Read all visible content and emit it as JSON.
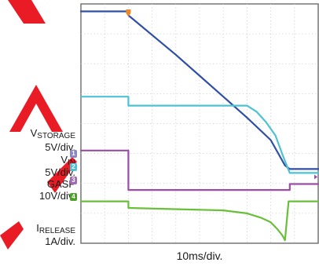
{
  "chart_data": {
    "type": "line",
    "title": "",
    "xlabel": "10ms/div.",
    "x_unit": "ms",
    "xlim": [
      0,
      100
    ],
    "grid": true,
    "grid_divisions": {
      "x": 10,
      "y": 8
    },
    "trigger_marker_color": "#e8892a",
    "series": [
      {
        "name_main": "V",
        "name_sub": "STORAGE",
        "scale": "5V/div.",
        "channel": "1",
        "color": "#2f4fa6",
        "marker_color": "#8a86c4",
        "points": [
          [
            0,
            7.75
          ],
          [
            20,
            7.75
          ],
          [
            20,
            7.62
          ],
          [
            40,
            6.3
          ],
          [
            60,
            4.9
          ],
          [
            70,
            4.2
          ],
          [
            80,
            3.45
          ],
          [
            86,
            2.6
          ],
          [
            88,
            2.48
          ],
          [
            100,
            2.48
          ]
        ]
      },
      {
        "name_main": "V",
        "name_sub": "IN",
        "scale": "5V/div.",
        "channel": "2",
        "color": "#4fc2d2",
        "marker_color": "#4fc2d2",
        "points": [
          [
            0,
            4.9
          ],
          [
            20,
            4.9
          ],
          [
            20,
            4.6
          ],
          [
            70,
            4.6
          ],
          [
            74,
            4.4
          ],
          [
            78,
            4.05
          ],
          [
            82,
            3.6
          ],
          [
            85,
            2.95
          ],
          [
            87,
            2.55
          ],
          [
            88,
            2.35
          ],
          [
            89,
            2.35
          ],
          [
            100,
            2.35
          ]
        ]
      },
      {
        "name_main": "GASP",
        "name_sub": "",
        "scale": "10V/div.",
        "channel": "3",
        "color": "#9a4ea6",
        "marker_color": "#a06ab4",
        "points": [
          [
            0,
            3.1
          ],
          [
            20,
            3.1
          ],
          [
            20,
            1.78
          ],
          [
            88,
            1.78
          ],
          [
            88,
            1.98
          ],
          [
            100,
            1.98
          ]
        ]
      },
      {
        "name_main": "I",
        "name_sub": "RELEASE",
        "scale": "1A/div.",
        "channel": "4",
        "color": "#6abf3a",
        "marker_color": "#4aa028",
        "points": [
          [
            0,
            1.4
          ],
          [
            20,
            1.4
          ],
          [
            20,
            1.18
          ],
          [
            60,
            1.1
          ],
          [
            70,
            1.0
          ],
          [
            76,
            0.85
          ],
          [
            80,
            0.7
          ],
          [
            83,
            0.45
          ],
          [
            85,
            0.25
          ],
          [
            86,
            0.1
          ],
          [
            87.5,
            1.4
          ],
          [
            100,
            1.4
          ]
        ]
      }
    ]
  },
  "labels": {
    "vstorage_main": "V",
    "vstorage_sub": "STORAGE",
    "vstorage_scale": "5V/div.",
    "vin_main": "V",
    "vin_sub": "IN",
    "vin_scale": "5V/div.",
    "gasp_main": "GASP",
    "gasp_scale": "10V/div.",
    "irelease_main": "I",
    "irelease_sub": "RELEASE",
    "irelease_scale": "1A/div."
  }
}
